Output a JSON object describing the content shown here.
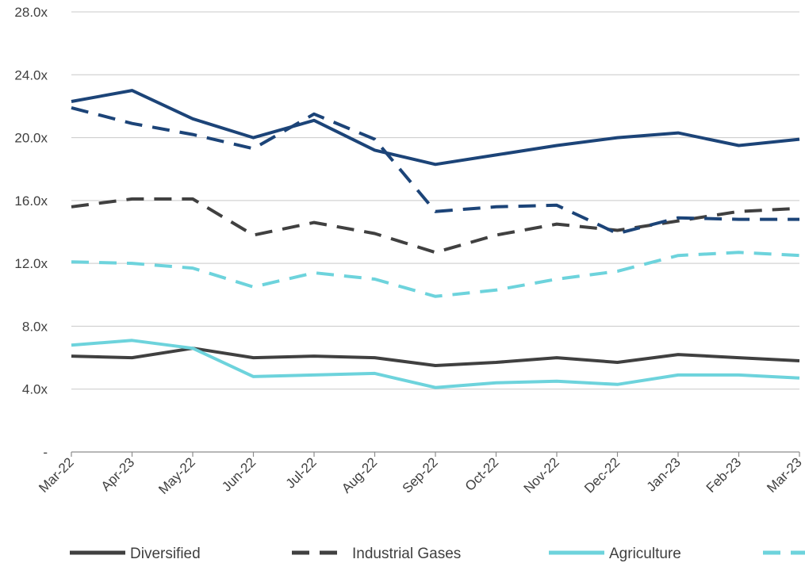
{
  "chart_data": {
    "type": "line",
    "title": "",
    "xlabel": "",
    "ylabel": "",
    "categories": [
      "Mar-22",
      "Apr-23",
      "May-22",
      "Jun-22",
      "Jul-22",
      "Aug-22",
      "Sep-22",
      "Oct-22",
      "Nov-22",
      "Dec-22",
      "Jan-23",
      "Feb-23",
      "Mar-23"
    ],
    "ylim": [
      0,
      28
    ],
    "yticks": [
      0,
      4,
      8,
      12,
      16,
      20,
      24,
      28
    ],
    "ytick_labels": [
      "-",
      "4.0x",
      "8.0x",
      "12.0x",
      "16.0x",
      "20.0x",
      "24.0x",
      "28.0x"
    ],
    "grid": true,
    "legend_position": "bottom",
    "series": [
      {
        "name": "Diversified",
        "color": "#404040",
        "dash": false,
        "in_legend": true,
        "values": [
          6.1,
          6.0,
          6.6,
          6.0,
          6.1,
          6.0,
          5.5,
          5.7,
          6.0,
          5.7,
          6.2,
          6.0,
          5.8
        ]
      },
      {
        "name": "Industrial Gases",
        "color": "#404040",
        "dash": true,
        "in_legend": true,
        "values": [
          15.6,
          16.1,
          16.1,
          13.8,
          14.6,
          13.9,
          12.7,
          13.8,
          14.5,
          14.1,
          14.7,
          15.3,
          15.5
        ]
      },
      {
        "name": "Agriculture",
        "color": "#6dd3dc",
        "dash": false,
        "in_legend": true,
        "values": [
          6.8,
          7.1,
          6.6,
          4.8,
          4.9,
          5.0,
          4.1,
          4.4,
          4.5,
          4.3,
          4.9,
          4.9,
          4.7
        ]
      },
      {
        "name": "",
        "color": "#6dd3dc",
        "dash": true,
        "in_legend": true,
        "values": [
          12.1,
          12.0,
          11.7,
          10.5,
          11.4,
          11.0,
          9.9,
          10.3,
          11.0,
          11.5,
          12.5,
          12.7,
          12.5
        ]
      },
      {
        "name": "",
        "color": "#1c4478",
        "dash": false,
        "in_legend": false,
        "values": [
          22.3,
          23.0,
          21.2,
          20.0,
          21.1,
          19.2,
          18.3,
          18.9,
          19.5,
          20.0,
          20.3,
          19.5,
          19.9
        ]
      },
      {
        "name": "",
        "color": "#1c4478",
        "dash": true,
        "in_legend": false,
        "values": [
          21.9,
          20.9,
          20.2,
          19.3,
          21.5,
          19.9,
          15.3,
          15.6,
          15.7,
          13.9,
          14.9,
          14.8,
          14.8
        ]
      }
    ]
  }
}
